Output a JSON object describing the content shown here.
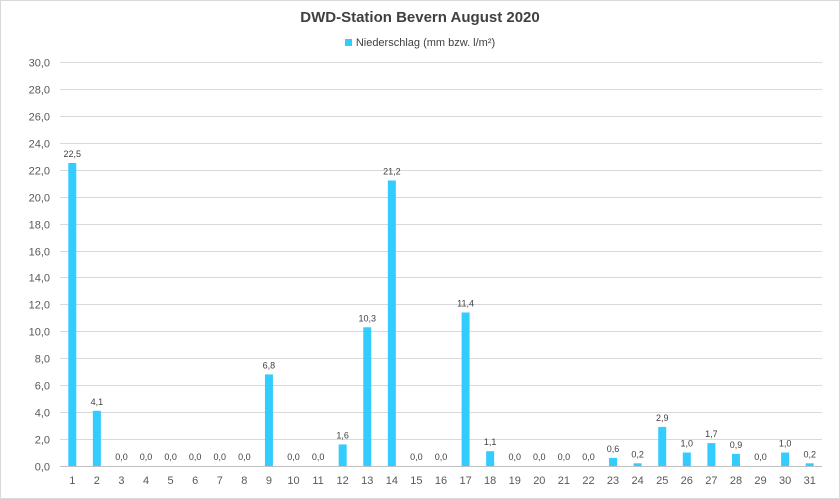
{
  "chart_data": {
    "type": "bar",
    "title": "DWD-Station  Bevern August 2020",
    "legend_position": "top-center",
    "grid": true,
    "xlabel": "",
    "ylabel": "",
    "ylim": [
      0,
      30
    ],
    "ytick_step": 2,
    "y_tick_labels": [
      "0,0",
      "2,0",
      "4,0",
      "6,0",
      "8,0",
      "10,0",
      "12,0",
      "14,0",
      "16,0",
      "18,0",
      "20,0",
      "22,0",
      "24,0",
      "26,0",
      "28,0",
      "30,0"
    ],
    "categories": [
      "1",
      "2",
      "3",
      "4",
      "5",
      "6",
      "7",
      "8",
      "9",
      "10",
      "11",
      "12",
      "13",
      "14",
      "15",
      "16",
      "17",
      "18",
      "19",
      "20",
      "21",
      "22",
      "23",
      "24",
      "25",
      "26",
      "27",
      "28",
      "29",
      "30",
      "31"
    ],
    "series": [
      {
        "name": "Niederschlag (mm bzw. l/m²)",
        "color": "#33ccff",
        "values": [
          22.5,
          4.1,
          0.0,
          0.0,
          0.0,
          0.0,
          0.0,
          0.0,
          6.8,
          0.0,
          0.0,
          1.6,
          10.3,
          21.2,
          0.0,
          0.0,
          11.4,
          1.1,
          0.0,
          0.0,
          0.0,
          0.0,
          0.6,
          0.2,
          2.9,
          1.0,
          1.7,
          0.9,
          0.0,
          1.0,
          0.2
        ],
        "data_labels": [
          "22,5",
          "4,1",
          "0,0",
          "0,0",
          "0,0",
          "0,0",
          "0,0",
          "0,0",
          "6,8",
          "0,0",
          "0,0",
          "1,6",
          "10,3",
          "21,2",
          "0,0",
          "0,0",
          "11,4",
          "1,1",
          "0,0",
          "0,0",
          "0,0",
          "0,0",
          "0,6",
          "0,2",
          "2,9",
          "1,0",
          "1,7",
          "0,9",
          "0,0",
          "1,0",
          "0,2"
        ]
      }
    ]
  }
}
